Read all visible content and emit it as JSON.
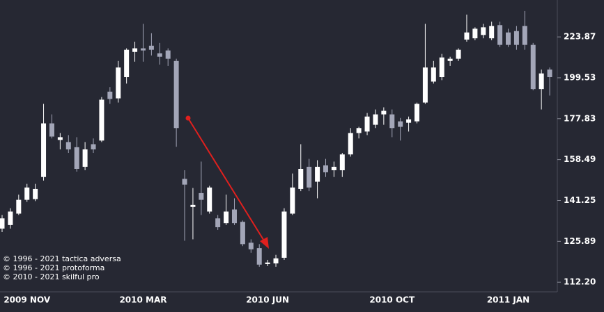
{
  "chart_data": {
    "type": "candlestick",
    "log_scale": true,
    "grid": false,
    "up_color": "#ffffff",
    "down_color": "#a3a6b8",
    "ylim": [
      109.2,
      248.4
    ],
    "yticks": [
      {
        "value": 112.2,
        "label": "112.20"
      },
      125.89,
      141.25,
      158.49,
      177.83,
      199.53,
      223.87
    ],
    "categories": [
      null,
      null,
      null,
      "2009 NOV",
      null,
      null,
      null,
      null,
      null,
      null,
      null,
      null,
      null,
      null,
      null,
      null,
      null,
      "2010 MAR",
      null,
      null,
      null,
      null,
      null,
      null,
      null,
      null,
      null,
      null,
      null,
      null,
      null,
      null,
      "2010 JUN",
      null,
      null,
      null,
      null,
      null,
      null,
      null,
      null,
      null,
      null,
      null,
      null,
      null,
      null,
      "2010 OCT",
      null,
      null,
      null,
      null,
      null,
      null,
      null,
      null,
      null,
      null,
      null,
      null,
      null,
      "2011 JAN",
      null,
      null,
      null,
      null,
      null
    ],
    "open": [
      130.5,
      131.8,
      136.1,
      141.5,
      141.8,
      150.9,
      175.5,
      167.5,
      166.5,
      164.1,
      155.3,
      165.5,
      167.2,
      191.9,
      188.3,
      199.9,
      214.6,
      216.8,
      218.4,
      213.8,
      215.5,
      209.2,
      150.1,
      138.7,
      144.2,
      136.9,
      134.3,
      132.5,
      137.7,
      133.0,
      125.4,
      123.5,
      118.1,
      118.3,
      120.2,
      136.1,
      145.9,
      155.3,
      148.9,
      155.9,
      153.8,
      153.8,
      160.8,
      170.8,
      171.5,
      174.8,
      180.0,
      180.0,
      176.5,
      175.8,
      176.5,
      186.1,
      197.4,
      199.9,
      209.2,
      210.5,
      222.2,
      223.0,
      225.1,
      223.0,
      231.4,
      226.7,
      227.6,
      230.9,
      218.9,
      193.3,
      204.2
    ],
    "high": [
      135.6,
      138.2,
      143.6,
      148.0,
      148.0,
      185.4,
      180.0,
      170.8,
      169.8,
      168.8,
      166.5,
      168.2,
      189.0,
      194.4,
      209.2,
      216.8,
      220.9,
      232.3,
      226.2,
      220.1,
      216.8,
      210.5,
      153.8,
      146.3,
      157.6,
      147.2,
      135.6,
      143.6,
      142.1,
      133.5,
      126.6,
      124.9,
      119.5,
      121.2,
      138.2,
      152.4,
      165.5,
      158.8,
      158.2,
      158.8,
      157.6,
      161.5,
      173.2,
      173.8,
      180.7,
      182.5,
      183.6,
      182.5,
      178.2,
      178.9,
      186.1,
      232.3,
      209.2,
      213.4,
      211.7,
      216.8,
      238.4,
      230.0,
      232.3,
      233.7,
      233.7,
      229.1,
      230.9,
      240.8,
      220.1,
      204.2,
      205.4
    ],
    "low": [
      129.2,
      130.5,
      135.6,
      140.7,
      141.0,
      149.4,
      168.2,
      163.1,
      161.5,
      153.2,
      153.8,
      161.5,
      166.5,
      185.4,
      186.1,
      196.3,
      208.8,
      208.8,
      212.5,
      207.1,
      206.3,
      164.3,
      126.1,
      126.6,
      135.6,
      136.1,
      130.0,
      131.8,
      131.8,
      124.2,
      121.9,
      117.2,
      117.4,
      117.2,
      119.5,
      135.6,
      145.0,
      145.0,
      142.1,
      150.9,
      150.9,
      150.9,
      159.8,
      168.2,
      169.8,
      173.2,
      174.8,
      168.8,
      167.2,
      171.5,
      175.5,
      185.4,
      196.3,
      198.2,
      206.3,
      209.2,
      220.9,
      221.8,
      223.0,
      221.8,
      217.6,
      217.6,
      215.9,
      215.9,
      192.6,
      182.5,
      189.8
    ],
    "close": [
      134.3,
      136.9,
      141.5,
      146.5,
      145.9,
      175.5,
      169.1,
      168.8,
      163.1,
      154.4,
      163.1,
      163.1,
      187.6,
      188.0,
      205.4,
      215.9,
      216.8,
      215.5,
      215.9,
      211.7,
      210.5,
      173.2,
      147.7,
      139.5,
      141.5,
      146.5,
      131.0,
      136.9,
      132.5,
      124.9,
      123.1,
      117.9,
      118.6,
      120.0,
      136.9,
      146.5,
      154.4,
      146.5,
      155.3,
      152.9,
      155.3,
      160.8,
      170.8,
      173.2,
      178.9,
      180.0,
      181.8,
      173.2,
      173.8,
      177.5,
      185.4,
      205.4,
      205.4,
      211.3,
      210.5,
      215.9,
      226.7,
      229.1,
      230.0,
      230.9,
      218.9,
      218.9,
      218.9,
      218.9,
      193.3,
      202.0,
      199.9
    ],
    "annotations": [
      "© 1996 - 2021 tactica adversa",
      "© 1996 - 2021 protoforma",
      "© 2010 - 2021 skilful pro"
    ]
  }
}
